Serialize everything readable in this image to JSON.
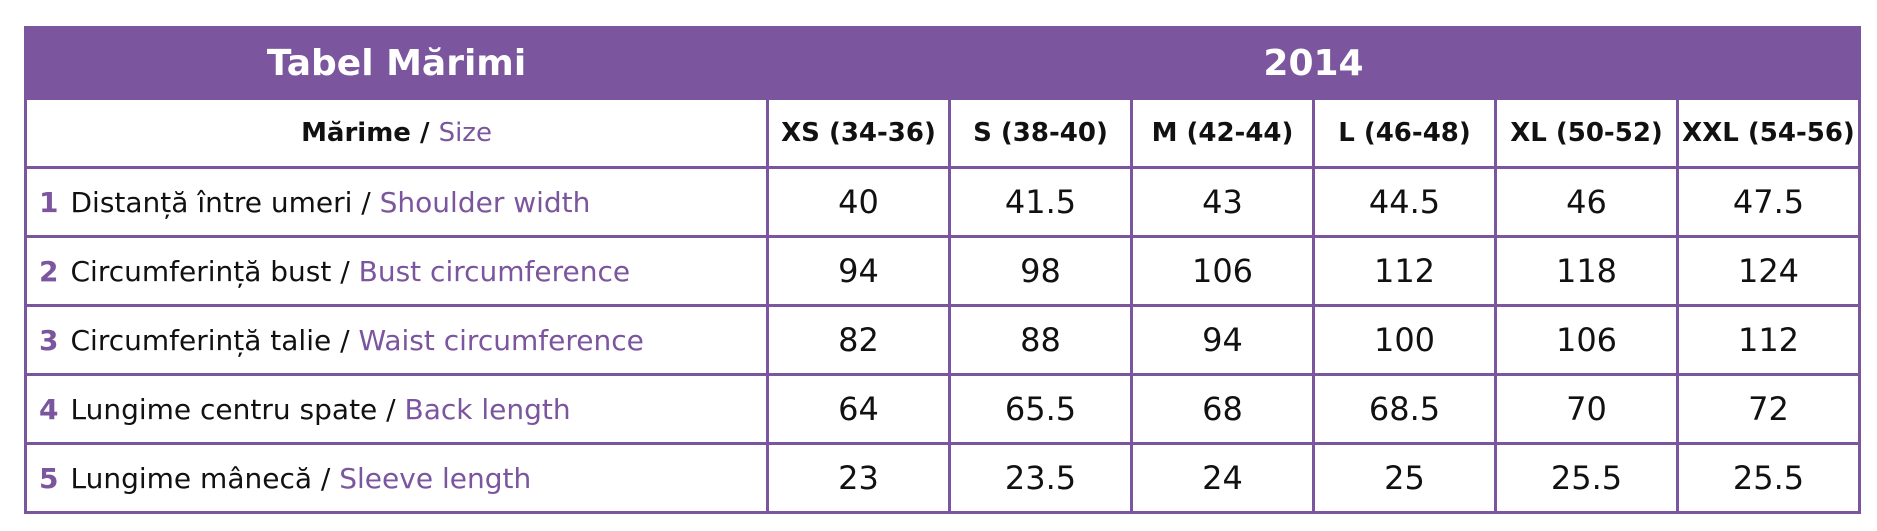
{
  "header": {
    "title": "Tabel Mărimi",
    "year": "2014"
  },
  "table": {
    "size_label": "Mărime /",
    "size_label_en": "Size",
    "sizes": [
      "XS (34-36)",
      "S (38-40)",
      "M (42-44)",
      "L (46-48)",
      "XL (50-52)",
      "XXL (54-56)"
    ],
    "rows": [
      {
        "number": "1",
        "label": "Distanță între umeri /",
        "label_en": "Shoulder width",
        "values": [
          40,
          41.5,
          43,
          44.5,
          46,
          47.5
        ]
      },
      {
        "number": "2",
        "label": "Circumferință bust /",
        "label_en": "Bust circumference",
        "values": [
          94,
          98,
          106,
          112,
          118,
          124
        ]
      },
      {
        "number": "3",
        "label": "Circumferință talie /",
        "label_en": "Waist circumference",
        "values": [
          82,
          88,
          94,
          100,
          106,
          112
        ]
      },
      {
        "number": "4",
        "label": "Lungime centru spate /",
        "label_en": "Back length",
        "values": [
          64,
          65.5,
          68,
          68.5,
          70,
          72
        ]
      },
      {
        "number": "5",
        "label": "Lungime mânecă /",
        "label_en": "Sleeve length",
        "values": [
          23,
          23.5,
          24,
          25,
          25.5,
          25.5
        ]
      }
    ]
  }
}
